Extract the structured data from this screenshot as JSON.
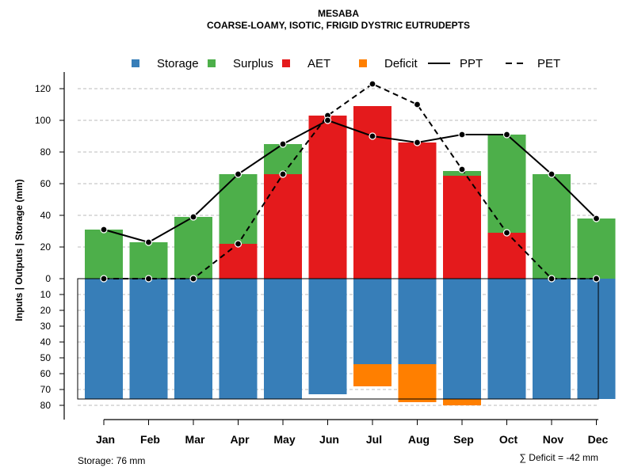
{
  "chart_data": {
    "type": "bar",
    "title": "MESABA",
    "subtitle": "COARSE-LOAMY, ISOTIC, FRIGID DYSTRIC EUTRUDEPTS",
    "ylabel": "Inputs | Outputs | Storage    (mm)",
    "categories": [
      "Jan",
      "Feb",
      "Mar",
      "Apr",
      "May",
      "Jun",
      "Jul",
      "Aug",
      "Sep",
      "Oct",
      "Nov",
      "Dec"
    ],
    "yticks_upper": [
      "120",
      "100",
      "80",
      "60",
      "40",
      "20",
      "0"
    ],
    "yticks_lower": [
      "10",
      "20",
      "30",
      "40",
      "50",
      "60",
      "70",
      "80"
    ],
    "ylim_upper": [
      0,
      130
    ],
    "ylim_lower": [
      0,
      85
    ],
    "storage_capacity": 76,
    "legend": [
      {
        "key": "storage",
        "label": "Storage",
        "kind": "box"
      },
      {
        "key": "surplus",
        "label": "Surplus",
        "kind": "box"
      },
      {
        "key": "aet",
        "label": "AET",
        "kind": "box"
      },
      {
        "key": "deficit",
        "label": "Deficit",
        "kind": "box"
      },
      {
        "key": "ppt",
        "label": "PPT",
        "kind": "solid"
      },
      {
        "key": "pet",
        "label": "PET",
        "kind": "dashed"
      }
    ],
    "colors": {
      "storage": "#377EB8",
      "surplus": "#4DAF4A",
      "aet": "#E41A1C",
      "deficit": "#FF7F00",
      "line": "#000000",
      "grid": "#bbbbbb"
    },
    "series": [
      {
        "name": "AET",
        "values": [
          0,
          0,
          0,
          22,
          66,
          103,
          109,
          86,
          65,
          29,
          0,
          0
        ]
      },
      {
        "name": "Surplus",
        "values": [
          31,
          23,
          39,
          44,
          19,
          0,
          0,
          0,
          3,
          62,
          66,
          38
        ]
      },
      {
        "name": "Storage",
        "values": [
          76,
          76,
          76,
          76,
          76,
          73,
          54,
          54,
          76,
          76,
          76,
          76
        ]
      },
      {
        "name": "Deficit",
        "values": [
          0,
          0,
          0,
          0,
          0,
          0,
          14,
          24,
          4,
          0,
          0,
          0
        ]
      },
      {
        "name": "PPT",
        "values": [
          31,
          23,
          39,
          66,
          85,
          100,
          90,
          86,
          91,
          91,
          66,
          38
        ]
      },
      {
        "name": "PET",
        "values": [
          0,
          0,
          0,
          22,
          66,
          103,
          123,
          110,
          69,
          29,
          0,
          0
        ]
      }
    ]
  },
  "footer": {
    "storage_text": "Storage: 76 mm",
    "deficit_text": "∑ Deficit = -42 mm"
  }
}
